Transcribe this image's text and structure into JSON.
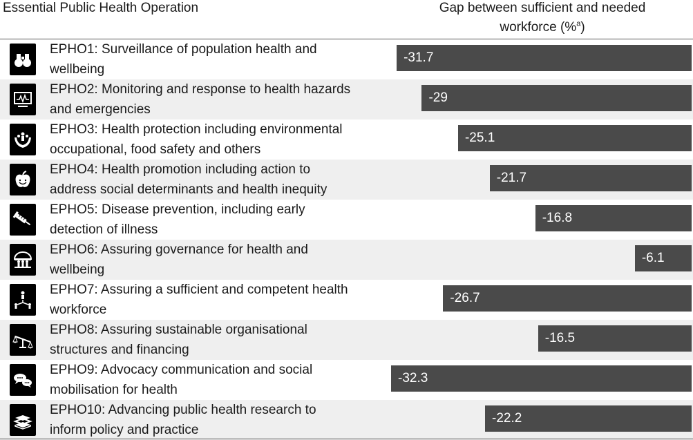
{
  "header": {
    "left": "Essential Public Health Operation",
    "right_line1": "Gap between sufficient and needed",
    "right_line2": "workforce (%",
    "right_sup": "a",
    "right_close": ")"
  },
  "chart_data": {
    "type": "bar",
    "orientation": "horizontal",
    "xlabel": "Gap between sufficient and needed workforce (%a)",
    "categories": [
      "EPHO1: Surveillance of population health and wellbeing",
      "EPHO2: Monitoring and response to health hazards and emergencies",
      "EPHO3: Health protection including environmental occupational, food safety and others",
      "EPHO4: Health promotion including action to address social determinants and health inequity",
      "EPHO5: Disease prevention, including early detection of illness",
      "EPHO6: Assuring governance for health and wellbeing",
      "EPHO7: Assuring a sufficient and competent health workforce",
      "EPHO8: Assuring sustainable organisational structures and financing",
      "EPHO9: Advocacy communication and social mobilisation for health",
      "EPHO10: Advancing public health research to inform policy and practice"
    ],
    "rows": [
      {
        "line1": "EPHO1: Surveillance of population health and",
        "line2": "wellbeing",
        "value": -31.7,
        "label": "-31.7",
        "icon": "binoculars-icon"
      },
      {
        "line1": "EPHO2: Monitoring and response to health hazards",
        "line2": "and emergencies",
        "value": -29,
        "label": "-29",
        "icon": "monitor-icon"
      },
      {
        "line1": "EPHO3: Health protection including environmental",
        "line2": "occupational, food safety and others",
        "value": -25.1,
        "label": "-25.1",
        "icon": "protect-hands-icon"
      },
      {
        "line1": "EPHO4: Health promotion including action to",
        "line2": "address social determinants and health inequity",
        "value": -21.7,
        "label": "-21.7",
        "icon": "apple-icon"
      },
      {
        "line1": "EPHO5: Disease prevention, including early",
        "line2": "detection of illness",
        "value": -16.8,
        "label": "-16.8",
        "icon": "syringe-icon"
      },
      {
        "line1": "EPHO6: Assuring governance for health and",
        "line2": "wellbeing",
        "value": -6.1,
        "label": "-6.1",
        "icon": "governance-icon"
      },
      {
        "line1": "EPHO7: Assuring a sufficient and competent health",
        "line2": "workforce",
        "value": -26.7,
        "label": "-26.7",
        "icon": "workforce-icon"
      },
      {
        "line1": "EPHO8: Assuring sustainable organisational",
        "line2": "structures and financing",
        "value": -16.5,
        "label": "-16.5",
        "icon": "scales-icon"
      },
      {
        "line1": "EPHO9: Advocacy communication and social",
        "line2": "mobilisation for health",
        "value": -32.3,
        "label": "-32.3",
        "icon": "speech-bubbles-icon"
      },
      {
        "line1": "EPHO10: Advancing public health research to",
        "line2": "inform policy and practice",
        "value": -22.2,
        "label": "-22.2",
        "icon": "books-icon"
      }
    ],
    "xlim": [
      -32.3,
      0
    ],
    "grid": false,
    "legend": "none"
  }
}
